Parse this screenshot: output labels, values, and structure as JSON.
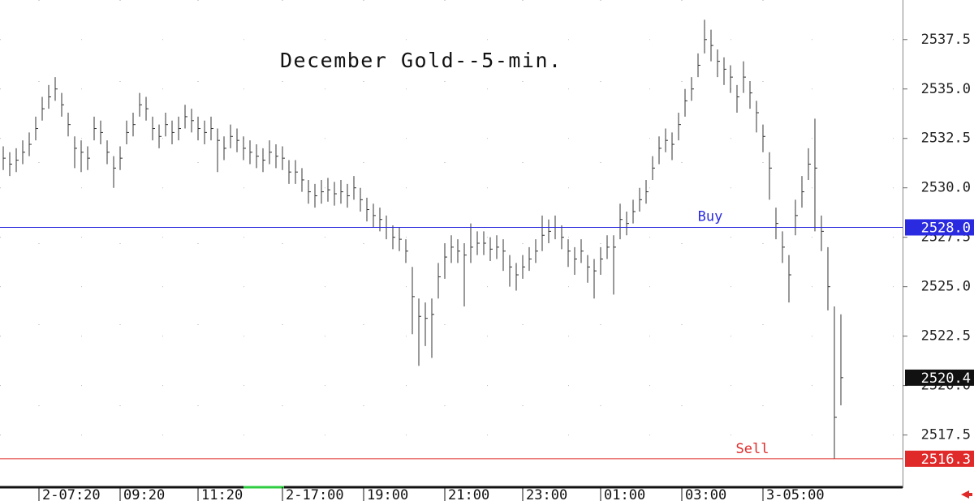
{
  "chart_data": {
    "type": "ohlc",
    "title": "December Gold--5-min.",
    "high": [
      2532.1,
      2531.8,
      2532.0,
      2532.4,
      2532.8,
      2533.6,
      2534.6,
      2535.2,
      2535.6,
      2534.8,
      2533.8,
      2532.6,
      2532.4,
      2532.1,
      2533.6,
      2533.4,
      2532.4,
      2531.6,
      2532.1,
      2533.4,
      2533.8,
      2534.8,
      2534.6,
      2533.6,
      2533.2,
      2533.8,
      2533.4,
      2533.6,
      2534.2,
      2534.0,
      2533.6,
      2533.4,
      2533.6,
      2533.0,
      2532.6,
      2533.2,
      2533.0,
      2532.6,
      2532.4,
      2532.2,
      2532.0,
      2532.4,
      2532.2,
      2532.1,
      2531.4,
      2531.4,
      2531.0,
      2530.4,
      2530.2,
      2530.4,
      2530.5,
      2530.3,
      2530.4,
      2530.2,
      2530.6,
      2530.0,
      2529.5,
      2529.2,
      2529.0,
      2528.6,
      2528.1,
      2528.0,
      2527.4,
      2526.0,
      2524.4,
      2524.2,
      2524.4,
      2526.2,
      2527.2,
      2527.6,
      2527.4,
      2527.2,
      2528.2,
      2527.8,
      2527.8,
      2527.5,
      2527.6,
      2527.4,
      2526.6,
      2526.2,
      2526.6,
      2527.0,
      2527.4,
      2528.6,
      2528.4,
      2528.6,
      2528.1,
      2527.4,
      2527.0,
      2527.4,
      2526.6,
      2526.4,
      2527.0,
      2527.6,
      2527.6,
      2529.2,
      2528.8,
      2529.4,
      2530.0,
      2530.4,
      2531.6,
      2532.6,
      2533.0,
      2532.8,
      2533.8,
      2535.0,
      2535.6,
      2536.8,
      2538.5,
      2538.0,
      2537.0,
      2536.6,
      2536.2,
      2535.2,
      2536.4,
      2535.4,
      2534.4,
      2533.2,
      2531.8,
      2529.0,
      2527.8,
      2526.6,
      2529.4,
      2530.6,
      2532.0,
      2533.5,
      2528.6,
      2527.0,
      2524.0,
      2523.6
    ],
    "low": [
      2530.9,
      2530.6,
      2530.8,
      2531.2,
      2531.6,
      2532.4,
      2533.4,
      2534.0,
      2534.4,
      2533.6,
      2532.6,
      2531.0,
      2530.8,
      2530.9,
      2532.4,
      2532.2,
      2531.2,
      2530.0,
      2530.9,
      2532.2,
      2532.6,
      2533.6,
      2533.4,
      2532.4,
      2532.0,
      2532.6,
      2532.2,
      2532.4,
      2533.0,
      2532.8,
      2532.4,
      2532.2,
      2532.4,
      2530.8,
      2531.4,
      2532.0,
      2531.8,
      2531.4,
      2531.2,
      2531.0,
      2530.8,
      2531.2,
      2531.0,
      2530.9,
      2530.2,
      2530.2,
      2529.8,
      2529.2,
      2529.0,
      2529.2,
      2529.3,
      2529.1,
      2529.2,
      2529.0,
      2529.4,
      2528.8,
      2528.3,
      2528.0,
      2527.8,
      2527.4,
      2526.9,
      2526.8,
      2526.2,
      2522.6,
      2521.0,
      2522.0,
      2521.4,
      2524.4,
      2525.4,
      2526.2,
      2526.2,
      2524.0,
      2526.2,
      2526.6,
      2526.6,
      2526.3,
      2526.4,
      2525.8,
      2525.0,
      2524.8,
      2525.4,
      2525.8,
      2526.2,
      2526.8,
      2527.2,
      2527.4,
      2526.9,
      2526.0,
      2525.6,
      2526.2,
      2525.2,
      2524.4,
      2525.6,
      2526.4,
      2524.6,
      2527.4,
      2527.6,
      2528.2,
      2528.8,
      2529.2,
      2530.4,
      2531.2,
      2531.8,
      2531.4,
      2532.4,
      2533.6,
      2534.4,
      2535.6,
      2536.8,
      2536.4,
      2535.6,
      2535.2,
      2534.8,
      2533.8,
      2534.8,
      2534.0,
      2532.8,
      2531.8,
      2529.4,
      2527.4,
      2526.2,
      2524.2,
      2527.6,
      2529.0,
      2530.4,
      2527.8,
      2526.8,
      2523.8,
      2516.3,
      2519.0
    ],
    "close": [
      2531.5,
      2531.2,
      2531.4,
      2531.8,
      2532.2,
      2533.0,
      2534.0,
      2534.6,
      2535.0,
      2534.2,
      2533.2,
      2532.0,
      2531.8,
      2531.5,
      2533.0,
      2532.8,
      2531.8,
      2531.0,
      2531.5,
      2532.8,
      2533.2,
      2534.2,
      2534.0,
      2533.0,
      2532.6,
      2533.2,
      2532.8,
      2533.0,
      2533.6,
      2533.4,
      2533.0,
      2532.8,
      2533.0,
      2532.4,
      2532.0,
      2532.6,
      2532.4,
      2532.0,
      2531.8,
      2531.6,
      2531.4,
      2531.8,
      2531.6,
      2531.5,
      2530.8,
      2530.8,
      2530.4,
      2529.8,
      2529.6,
      2529.8,
      2529.9,
      2529.7,
      2529.8,
      2529.6,
      2530.0,
      2529.4,
      2528.9,
      2528.6,
      2528.4,
      2528.0,
      2527.5,
      2527.4,
      2526.8,
      2524.5,
      2523.5,
      2523.4,
      2523.6,
      2525.5,
      2526.5,
      2527.0,
      2526.8,
      2526.6,
      2527.0,
      2527.2,
      2527.2,
      2526.9,
      2527.0,
      2526.8,
      2526.0,
      2525.6,
      2526.0,
      2526.4,
      2526.8,
      2527.6,
      2527.8,
      2528.0,
      2527.5,
      2526.8,
      2526.4,
      2526.8,
      2526.0,
      2525.8,
      2526.4,
      2527.0,
      2527.0,
      2528.4,
      2528.2,
      2528.8,
      2529.4,
      2529.8,
      2531.0,
      2532.0,
      2532.4,
      2532.2,
      2533.2,
      2534.4,
      2535.0,
      2536.2,
      2537.5,
      2537.2,
      2536.4,
      2536.0,
      2535.6,
      2534.6,
      2535.6,
      2534.8,
      2533.8,
      2532.6,
      2531.0,
      2528.2,
      2527.0,
      2525.6,
      2528.6,
      2529.8,
      2531.2,
      2531.0,
      2527.8,
      2525.0,
      2518.4,
      2520.4
    ],
    "color": "#333333",
    "last_price_label": "2520.4",
    "ylim": [
      2514.9,
      2539.5
    ],
    "yticks": [
      2517.5,
      {
        "value": 2520,
        "label": "2520.0"
      },
      2522.5,
      {
        "value": 2525,
        "label": "2525.0"
      },
      2527.5,
      {
        "value": 2530,
        "label": "2530.0"
      },
      2532.5,
      {
        "value": 2535,
        "label": "2535.0"
      },
      2537.5
    ],
    "xlim": [
      -0.5,
      138.5
    ],
    "xticks": [
      {
        "value": 5.5,
        "label": "2-07:20"
      },
      {
        "value": 18,
        "label": "09:20"
      },
      {
        "value": 30,
        "label": "11:20"
      },
      {
        "value": 43,
        "label": "2-17:00"
      },
      {
        "value": 55.5,
        "label": "19:00"
      },
      {
        "value": 68,
        "label": "21:00"
      },
      {
        "value": 80,
        "label": "23:00"
      },
      {
        "value": 92,
        "label": "01:00"
      },
      {
        "value": 104.5,
        "label": "03:00"
      },
      {
        "value": 117,
        "label": "3-05:00"
      }
    ],
    "levels": [
      {
        "name": "Buy",
        "value": 2528.0,
        "value_label": "2528.0",
        "color": "#2a2ae0"
      },
      {
        "name": "Sell",
        "value": 2516.3,
        "value_label": "2516.3",
        "color": "#e02a2a"
      }
    ],
    "grid": true
  }
}
